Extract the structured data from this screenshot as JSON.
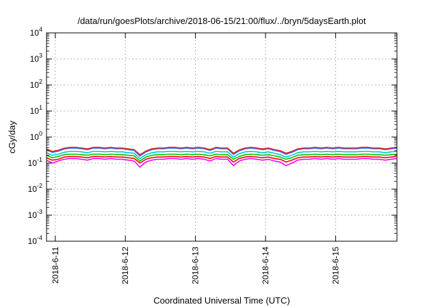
{
  "chart_data": {
    "type": "line",
    "title": "/data/run/goesPlots/archive/2018-06-15/21:00/flux/../bryn/5daysEarth.plot",
    "xlabel": "Coordinated Universal Time (UTC)",
    "ylabel": "cGy/day",
    "y_scale": "log",
    "ylim": [
      0.0001,
      10000
    ],
    "y_ticks": [
      {
        "base": "10",
        "exp": "-4",
        "value": 0.0001
      },
      {
        "base": "10",
        "exp": "-3",
        "value": 0.001
      },
      {
        "base": "10",
        "exp": "-2",
        "value": 0.01
      },
      {
        "base": "10",
        "exp": "-1",
        "value": 0.1
      },
      {
        "base": "10",
        "exp": "0",
        "value": 1
      },
      {
        "base": "10",
        "exp": "1",
        "value": 10
      },
      {
        "base": "10",
        "exp": "2",
        "value": 100
      },
      {
        "base": "10",
        "exp": "3",
        "value": 1000
      },
      {
        "base": "10",
        "exp": "4",
        "value": 10000
      }
    ],
    "xlim": [
      "2018-06-10 21:00",
      "2018-06-15 21:00"
    ],
    "x_ticks": [
      "2018-6-11",
      "2018-6-12",
      "2018-6-13",
      "2018-6-14",
      "2018-6-15"
    ],
    "grid": true,
    "x": [
      "06-10 21:00",
      "06-10 23:00",
      "06-11 01:00",
      "06-11 03:00",
      "06-11 05:00",
      "06-11 07:00",
      "06-11 09:00",
      "06-11 11:00",
      "06-11 13:00",
      "06-11 15:00",
      "06-11 17:00",
      "06-11 19:00",
      "06-11 21:00",
      "06-11 23:00",
      "06-12 01:00",
      "06-12 03:00",
      "06-12 05:00",
      "06-12 07:00",
      "06-12 09:00",
      "06-12 11:00",
      "06-12 13:00",
      "06-12 15:00",
      "06-12 17:00",
      "06-12 19:00",
      "06-12 21:00",
      "06-12 23:00",
      "06-13 01:00",
      "06-13 03:00",
      "06-13 05:00",
      "06-13 07:00",
      "06-13 09:00",
      "06-13 11:00",
      "06-13 13:00",
      "06-13 15:00",
      "06-13 17:00",
      "06-13 19:00",
      "06-13 21:00",
      "06-13 23:00",
      "06-14 01:00",
      "06-14 03:00",
      "06-14 05:00",
      "06-14 07:00",
      "06-14 09:00",
      "06-14 11:00",
      "06-14 13:00",
      "06-14 15:00",
      "06-14 17:00",
      "06-14 19:00",
      "06-14 21:00",
      "06-14 23:00",
      "06-15 01:00",
      "06-15 03:00",
      "06-15 05:00",
      "06-15 07:00",
      "06-15 09:00",
      "06-15 11:00",
      "06-15 13:00",
      "06-15 15:00",
      "06-15 17:00",
      "06-15 19:00",
      "06-15 21:00"
    ],
    "series": [
      {
        "color": "#ff00ff",
        "values": [
          0.13,
          0.1,
          0.12,
          0.14,
          0.15,
          0.15,
          0.14,
          0.13,
          0.15,
          0.15,
          0.14,
          0.15,
          0.14,
          0.14,
          0.13,
          0.12,
          0.07,
          0.11,
          0.13,
          0.14,
          0.14,
          0.15,
          0.15,
          0.14,
          0.15,
          0.14,
          0.15,
          0.14,
          0.12,
          0.15,
          0.14,
          0.14,
          0.08,
          0.12,
          0.14,
          0.15,
          0.14,
          0.13,
          0.14,
          0.12,
          0.11,
          0.08,
          0.1,
          0.13,
          0.14,
          0.14,
          0.15,
          0.14,
          0.15,
          0.14,
          0.15,
          0.14,
          0.14,
          0.14,
          0.15,
          0.15,
          0.14,
          0.14,
          0.13,
          0.14,
          0.15
        ]
      },
      {
        "color": "#ff0000",
        "values": [
          0.16,
          0.13,
          0.14,
          0.17,
          0.18,
          0.18,
          0.17,
          0.16,
          0.18,
          0.18,
          0.17,
          0.18,
          0.17,
          0.17,
          0.16,
          0.15,
          0.1,
          0.14,
          0.16,
          0.17,
          0.17,
          0.18,
          0.18,
          0.17,
          0.18,
          0.17,
          0.18,
          0.17,
          0.15,
          0.18,
          0.17,
          0.17,
          0.11,
          0.15,
          0.17,
          0.18,
          0.17,
          0.16,
          0.17,
          0.15,
          0.14,
          0.11,
          0.13,
          0.16,
          0.17,
          0.17,
          0.18,
          0.17,
          0.18,
          0.17,
          0.18,
          0.17,
          0.17,
          0.17,
          0.18,
          0.18,
          0.17,
          0.17,
          0.16,
          0.17,
          0.18
        ]
      },
      {
        "color": "#00c000",
        "values": [
          0.2,
          0.16,
          0.18,
          0.21,
          0.22,
          0.22,
          0.21,
          0.2,
          0.22,
          0.22,
          0.21,
          0.22,
          0.21,
          0.21,
          0.2,
          0.19,
          0.12,
          0.17,
          0.2,
          0.21,
          0.21,
          0.22,
          0.22,
          0.21,
          0.22,
          0.21,
          0.22,
          0.21,
          0.19,
          0.22,
          0.21,
          0.21,
          0.14,
          0.18,
          0.21,
          0.22,
          0.21,
          0.2,
          0.21,
          0.19,
          0.17,
          0.14,
          0.16,
          0.2,
          0.21,
          0.21,
          0.22,
          0.21,
          0.22,
          0.21,
          0.22,
          0.21,
          0.21,
          0.21,
          0.22,
          0.22,
          0.21,
          0.21,
          0.2,
          0.21,
          0.22
        ]
      },
      {
        "color": "#00c8c8",
        "values": [
          0.25,
          0.2,
          0.22,
          0.26,
          0.28,
          0.28,
          0.27,
          0.25,
          0.28,
          0.28,
          0.27,
          0.28,
          0.27,
          0.27,
          0.25,
          0.24,
          0.15,
          0.21,
          0.25,
          0.27,
          0.27,
          0.28,
          0.28,
          0.27,
          0.28,
          0.27,
          0.28,
          0.27,
          0.24,
          0.28,
          0.27,
          0.27,
          0.17,
          0.23,
          0.27,
          0.28,
          0.27,
          0.25,
          0.27,
          0.24,
          0.21,
          0.17,
          0.2,
          0.25,
          0.27,
          0.27,
          0.28,
          0.27,
          0.28,
          0.27,
          0.28,
          0.27,
          0.27,
          0.27,
          0.28,
          0.28,
          0.27,
          0.27,
          0.25,
          0.27,
          0.28
        ]
      },
      {
        "color": "#3070ff",
        "values": [
          0.33,
          0.26,
          0.29,
          0.35,
          0.38,
          0.38,
          0.36,
          0.33,
          0.38,
          0.38,
          0.36,
          0.38,
          0.36,
          0.36,
          0.33,
          0.31,
          0.19,
          0.27,
          0.33,
          0.36,
          0.36,
          0.38,
          0.38,
          0.36,
          0.38,
          0.36,
          0.38,
          0.36,
          0.31,
          0.38,
          0.36,
          0.36,
          0.22,
          0.3,
          0.36,
          0.38,
          0.36,
          0.33,
          0.36,
          0.31,
          0.28,
          0.22,
          0.26,
          0.33,
          0.36,
          0.36,
          0.38,
          0.36,
          0.38,
          0.36,
          0.38,
          0.36,
          0.36,
          0.36,
          0.38,
          0.38,
          0.36,
          0.36,
          0.33,
          0.36,
          0.38
        ]
      },
      {
        "color": "#e02020",
        "values": [
          0.35,
          0.28,
          0.31,
          0.37,
          0.4,
          0.4,
          0.38,
          0.35,
          0.4,
          0.4,
          0.38,
          0.4,
          0.38,
          0.38,
          0.35,
          0.33,
          0.21,
          0.29,
          0.35,
          0.38,
          0.38,
          0.4,
          0.4,
          0.38,
          0.4,
          0.38,
          0.4,
          0.38,
          0.33,
          0.4,
          0.38,
          0.38,
          0.24,
          0.32,
          0.38,
          0.4,
          0.38,
          0.35,
          0.38,
          0.33,
          0.3,
          0.24,
          0.28,
          0.35,
          0.38,
          0.38,
          0.4,
          0.38,
          0.4,
          0.38,
          0.4,
          0.38,
          0.38,
          0.38,
          0.4,
          0.4,
          0.38,
          0.38,
          0.35,
          0.38,
          0.4
        ]
      }
    ]
  }
}
